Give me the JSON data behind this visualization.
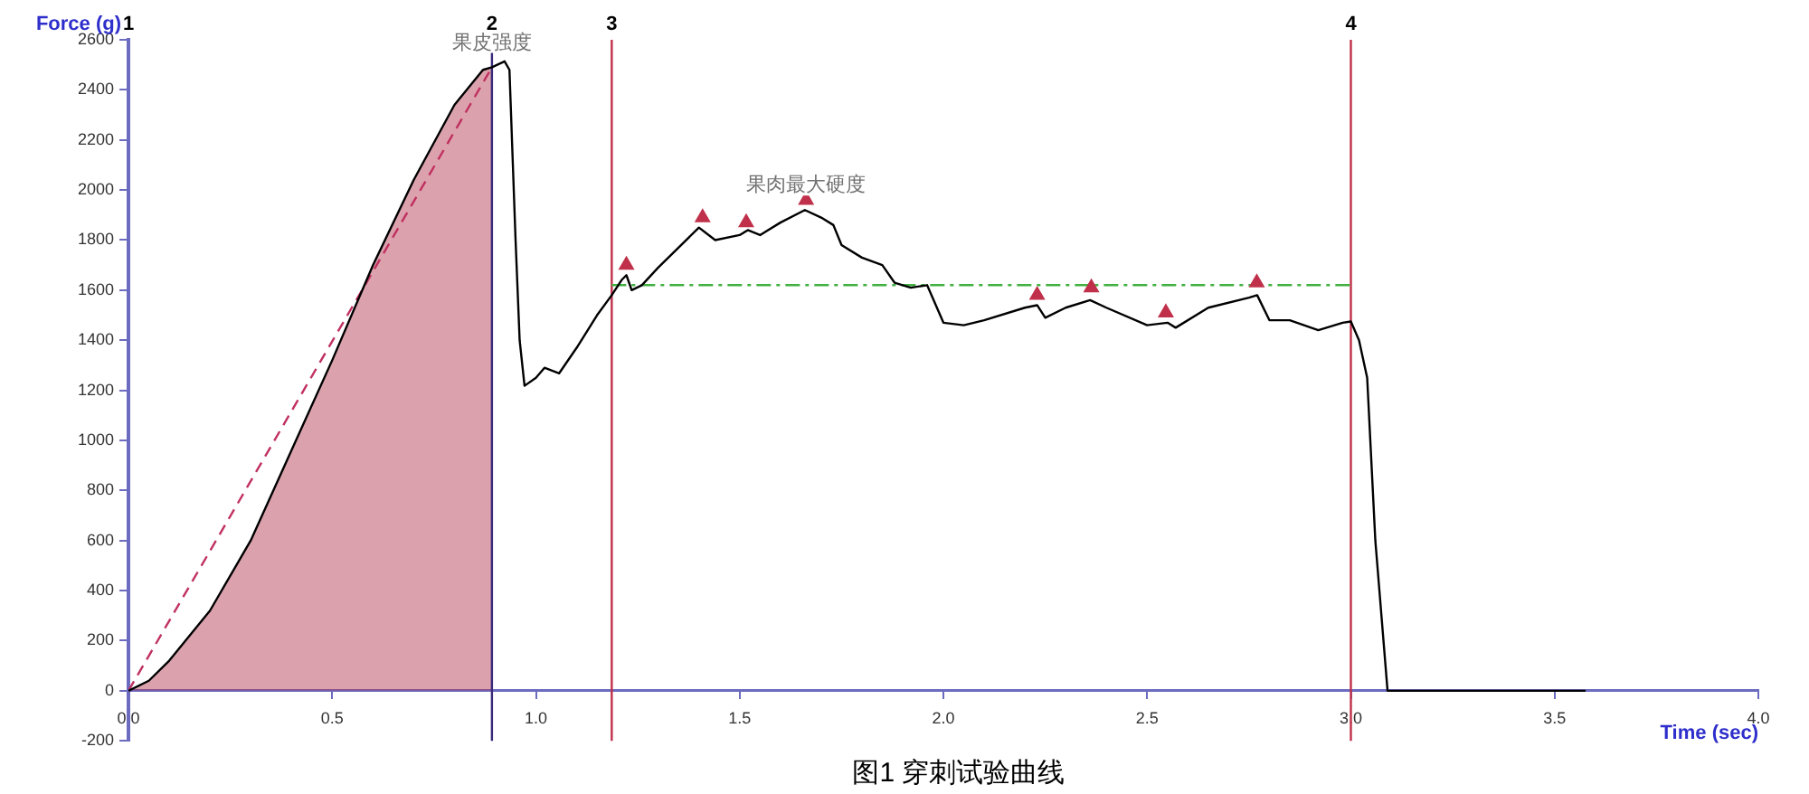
{
  "chart_data": {
    "type": "line",
    "xlabel": "Time (sec)",
    "ylabel": "Force (g)",
    "xlim": [
      0,
      4
    ],
    "xticks": [
      {
        "value": 0,
        "label": "0.0"
      },
      {
        "value": 0.5,
        "label": "0.5"
      },
      {
        "value": 1,
        "label": "1.0"
      },
      {
        "value": 1.5,
        "label": "1.5"
      },
      {
        "value": 2,
        "label": "2.0"
      },
      {
        "value": 2.5,
        "label": "2.5"
      },
      {
        "value": 3,
        "label": "3.0"
      },
      {
        "value": 3.5,
        "label": "3.5"
      },
      {
        "value": 4,
        "label": "4.0"
      }
    ],
    "ylim": [
      -200,
      2600
    ],
    "yticks": [
      -200,
      0,
      200,
      400,
      600,
      800,
      1000,
      1200,
      1400,
      1600,
      1800,
      2000,
      2200,
      2400,
      2600
    ],
    "legend": false,
    "series": [
      {
        "color": "#000000",
        "x": [
          0,
          0.05,
          0.1,
          0.2,
          0.3,
          0.4,
          0.5,
          0.6,
          0.7,
          0.8,
          0.87,
          0.892,
          0.923,
          0.935,
          0.95,
          0.96,
          0.972,
          1.0,
          1.021,
          1.057,
          1.1,
          1.15,
          1.186,
          1.21,
          1.222,
          1.235,
          1.26,
          1.3,
          1.4,
          1.44,
          1.5,
          1.52,
          1.55,
          1.6,
          1.66,
          1.7,
          1.73,
          1.75,
          1.8,
          1.85,
          1.88,
          1.92,
          1.96,
          2.0,
          2.05,
          2.1,
          2.2,
          2.23,
          2.25,
          2.3,
          2.36,
          2.4,
          2.5,
          2.55,
          2.57,
          2.65,
          2.75,
          2.77,
          2.8,
          2.85,
          2.92,
          2.98,
          3.0,
          3.02,
          3.04,
          3.06,
          3.09,
          3.2,
          3.5,
          3.576
        ],
        "values": [
          0,
          40,
          120,
          320,
          600,
          960,
          1320,
          1700,
          2040,
          2340,
          2480,
          2490,
          2514,
          2480,
          1800,
          1400,
          1218,
          1250,
          1290,
          1268,
          1370,
          1500,
          1580,
          1640,
          1660,
          1600,
          1620,
          1690,
          1850,
          1800,
          1820,
          1840,
          1820,
          1870,
          1920,
          1890,
          1860,
          1780,
          1730,
          1700,
          1630,
          1610,
          1620,
          1470,
          1460,
          1480,
          1530,
          1540,
          1490,
          1530,
          1560,
          1530,
          1460,
          1470,
          1450,
          1530,
          1570,
          1580,
          1480,
          1480,
          1440,
          1470,
          1475,
          1400,
          1250,
          600,
          0,
          0,
          0,
          0
        ]
      },
      {
        "type": "line",
        "color": "#c03060",
        "line_style": "dashed",
        "x": [
          0,
          0.892
        ],
        "values": [
          0,
          2490
        ]
      },
      {
        "type": "scatter",
        "color": "#c0304a",
        "marker": "triangle",
        "x": [
          1.222,
          1.409,
          1.516,
          1.663,
          2.23,
          2.363,
          2.546,
          2.769
        ],
        "values": [
          1700,
          1890,
          1870,
          1960,
          1580,
          1610,
          1510,
          1630
        ]
      }
    ],
    "ref_lines": [
      {
        "axis": "x",
        "value": 0.892,
        "color": "#3a2a7a"
      },
      {
        "axis": "x",
        "value": 1.186,
        "color": "#c0304a"
      },
      {
        "axis": "x",
        "value": 3.0,
        "color": "#c0304a"
      },
      {
        "axis": "y",
        "value": 1620,
        "color": "#40b040",
        "line_style": "dashed"
      }
    ],
    "bands": [
      {
        "axis": "x",
        "from": 0,
        "to": 0.892,
        "color": "#b0304a"
      }
    ],
    "annotations": [
      "1",
      "2",
      "3",
      "4",
      {
        "text": "果皮强度",
        "x": 0.892,
        "y": 2490
      },
      {
        "text": "果肉最大硬度",
        "x": 1.663,
        "y": 1920
      },
      "图1 穿刺试验曲线"
    ]
  }
}
